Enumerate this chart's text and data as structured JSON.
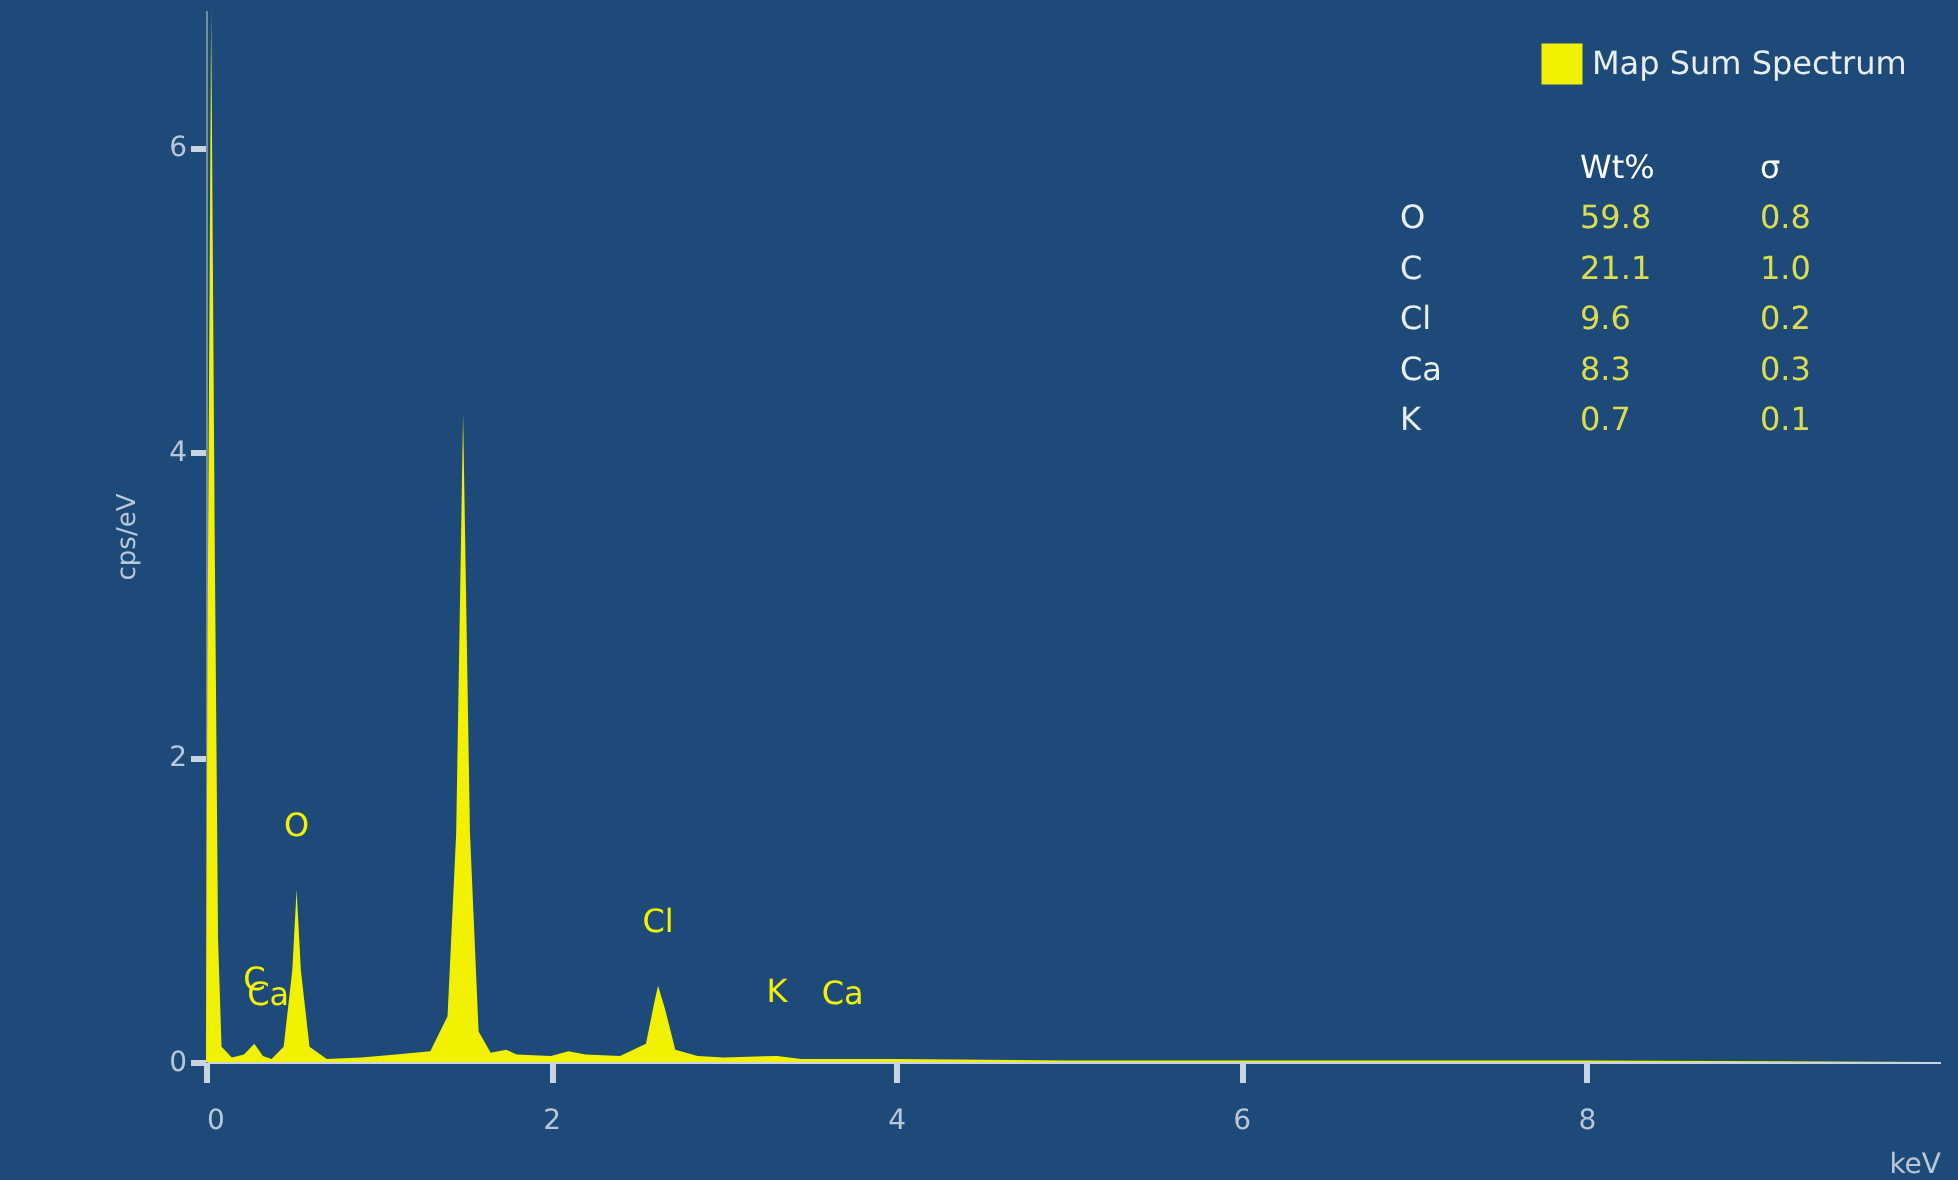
{
  "chart_data": [
    {
      "type": "area",
      "xlabel": "keV",
      "ylabel": "cps/eV",
      "legend": "top right",
      "grid": false,
      "xlim": [
        0,
        10.05
      ],
      "xticks": [
        0,
        2,
        4,
        6,
        8
      ],
      "ylim": [
        0,
        6.9
      ],
      "yticks": [
        0,
        2,
        4,
        6
      ],
      "x": [
        0,
        0.01,
        0.03,
        0.05,
        0.07,
        0.09,
        0.15,
        0.22,
        0.28,
        0.33,
        0.38,
        0.45,
        0.5,
        0.525,
        0.55,
        0.6,
        0.7,
        0.9,
        1.1,
        1.3,
        1.4,
        1.45,
        1.49,
        1.53,
        1.58,
        1.65,
        1.74,
        1.8,
        2.0,
        2.1,
        2.2,
        2.4,
        2.55,
        2.6,
        2.62,
        2.66,
        2.72,
        2.85,
        3.0,
        3.31,
        3.45,
        3.69,
        4.0,
        5.0,
        6.0,
        8.0,
        10.0
      ],
      "series": [
        {
          "name": "Map Sum Spectrum",
          "color": "#f2f200",
          "values": [
            0,
            3,
            6.9,
            3.5,
            0.8,
            0.1,
            0.03,
            0.05,
            0.12,
            0.04,
            0.02,
            0.1,
            0.6,
            1.13,
            0.6,
            0.1,
            0.02,
            0.03,
            0.05,
            0.07,
            0.3,
            1.5,
            4.25,
            1.5,
            0.2,
            0.06,
            0.08,
            0.05,
            0.04,
            0.07,
            0.05,
            0.04,
            0.12,
            0.4,
            0.5,
            0.35,
            0.08,
            0.04,
            0.03,
            0.04,
            0.02,
            0.02,
            0.02,
            0.01,
            0.01,
            0.01,
            0.0
          ]
        }
      ],
      "annotations": [
        {
          "text": "C",
          "x": 0.28,
          "y": 0.12
        },
        {
          "text": "Ca",
          "x": 0.36,
          "y": 0.02
        },
        {
          "text": "O",
          "x": 0.525,
          "y": 1.13
        },
        {
          "text": "Cl",
          "x": 2.62,
          "y": 0.5
        },
        {
          "text": "K",
          "x": 3.31,
          "y": 0.04
        },
        {
          "text": "Ca",
          "x": 3.69,
          "y": 0.025
        }
      ]
    },
    {
      "type": "other",
      "categories": [
        "O",
        "C",
        "Cl",
        "Ca",
        "K"
      ],
      "data_labels": true,
      "series": [
        {
          "name": "Wt%",
          "values": [
            59.8,
            21.1,
            9.6,
            8.3,
            0.7
          ]
        },
        {
          "name": "σ",
          "values": [
            0.8,
            1.0,
            0.2,
            0.3,
            0.1
          ],
          "value_labels": [
            "0.8",
            "1.0",
            "0.2",
            "0.3",
            "0.1"
          ]
        }
      ]
    }
  ]
}
